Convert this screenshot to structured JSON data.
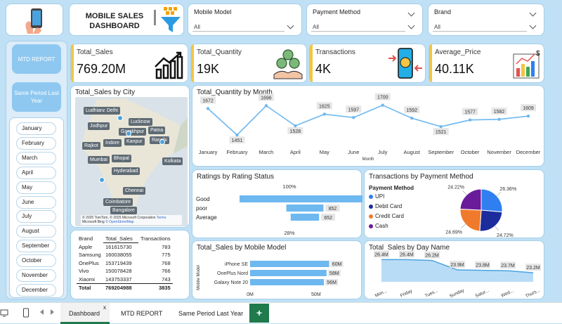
{
  "header": {
    "title_line1": "MOBILE SALES",
    "title_line2": "DASHBOARD"
  },
  "filters": [
    {
      "label": "Mobile Model",
      "value": "All"
    },
    {
      "label": "Payment Method",
      "value": "All"
    },
    {
      "label": "Brand",
      "value": "All"
    }
  ],
  "nav": {
    "mtd": "MTD REPORT",
    "same_period": "Same Period Last Year"
  },
  "kpis": [
    {
      "label": "Total_Sales",
      "value": "769.20M"
    },
    {
      "label": "Total_Quantity",
      "value": "19K"
    },
    {
      "label": "Transactions",
      "value": "4K"
    },
    {
      "label": "Average_Price",
      "value": "40.11K",
      "icon_symbol": "$"
    }
  ],
  "months": [
    "January",
    "February",
    "March",
    "April",
    "May",
    "June",
    "July",
    "August",
    "September",
    "October",
    "November",
    "December"
  ],
  "map": {
    "title": "Total_Sales by City",
    "cities": [
      "Ludhiana",
      "Delhi",
      "Lucknow",
      "Jodhpur",
      "Gorakhpur",
      "Patna",
      "Rajkot",
      "Indore",
      "Kanpur",
      "Ranchi",
      "Mumbai",
      "Bhopal",
      "Kolkata",
      "Hyderabad",
      "Chennai",
      "Coimbatore",
      "Bangalore"
    ],
    "footer": "© 2025 TomTom, © 2025 Microsoft Corporation",
    "terms": "Terms",
    "osm": "© OpenStreetMap",
    "bing": "Microsoft Bing"
  },
  "brand_table": {
    "headers": [
      "Brand",
      "Total_Sales",
      "Transactions"
    ],
    "rows": [
      [
        "Apple",
        "161615730",
        "783"
      ],
      [
        "Samsung",
        "160038055",
        "775"
      ],
      [
        "OnePlus",
        "153719439",
        "768"
      ],
      [
        "Vivo",
        "150078428",
        "766"
      ],
      [
        "Xiaomi",
        "143753337",
        "743"
      ]
    ],
    "total": [
      "Total",
      "769204988",
      "3835"
    ]
  },
  "qty_month": {
    "title": "Total_Quantity by Month",
    "xlabel": "Month",
    "labels": [
      "1672",
      "1451",
      "1696",
      "1528",
      "1625",
      "1597",
      "1700",
      "1592",
      "1521",
      "1577",
      "1582",
      "1609"
    ]
  },
  "ratings": {
    "title": "Ratings by Rating Status",
    "top_label": "100%",
    "bottom_label": "28%",
    "categories": [
      "Good",
      "poor",
      "Average"
    ],
    "value_labels": [
      "",
      "852",
      "652"
    ]
  },
  "payment": {
    "title": "Transactions by Payment Method",
    "legend_title": "Payment Method",
    "slices": [
      {
        "name": "UPI",
        "pct": "26.36%",
        "color": "#2f7ff0"
      },
      {
        "name": "Debit Card",
        "pct": "24.72%",
        "color": "#1c2c9c"
      },
      {
        "name": "Credit Card",
        "pct": "24.69%",
        "color": "#f07a2c"
      },
      {
        "name": "Cash",
        "pct": "24.22%",
        "color": "#6a1b9a"
      }
    ]
  },
  "model_sales": {
    "title": "Total_Sales by Mobile Model",
    "ylabel": "Mobile Model",
    "models": [
      "iPhone SE",
      "OnePlus Nord",
      "Galaxy Note 20"
    ],
    "labels": [
      "60M",
      "58M",
      "56M"
    ],
    "axis": [
      "0M",
      "50M"
    ]
  },
  "day_sales": {
    "title": "Total_Sales by Day Name",
    "days": [
      "Mon...",
      "Friday",
      "Tues...",
      "Sunday",
      "Satur...",
      "Wed...",
      "Thurs..."
    ],
    "labels": [
      "26.4M",
      "26.4M",
      "26.2M",
      "23.9M",
      "23.8M",
      "23.7M",
      "23.2M"
    ]
  },
  "tabs": [
    "Dashboard",
    "MTD REPORT",
    "Same Period Last Year"
  ],
  "tab_close": "x",
  "tab_add": "+",
  "chart_data": [
    {
      "type": "line",
      "title": "Total_Quantity by Month",
      "xlabel": "Month",
      "x": [
        "January",
        "February",
        "March",
        "April",
        "May",
        "June",
        "July",
        "August",
        "September",
        "October",
        "November",
        "December"
      ],
      "series": [
        {
          "values": [
            1672,
            1451,
            1696,
            1528,
            1625,
            1597,
            1700,
            1592,
            1521,
            1577,
            1582,
            1609
          ]
        }
      ]
    },
    {
      "type": "bar",
      "title": "Ratings by Rating Status",
      "categories": [
        "Good",
        "poor",
        "Average"
      ],
      "values": [
        3000,
        852,
        652
      ]
    },
    {
      "type": "pie",
      "title": "Transactions by Payment Method",
      "categories": [
        "UPI",
        "Debit Card",
        "Credit Card",
        "Cash"
      ],
      "values": [
        26.36,
        24.72,
        24.69,
        24.22
      ]
    },
    {
      "type": "bar",
      "title": "Total_Sales by Mobile Model",
      "categories": [
        "iPhone SE",
        "OnePlus Nord",
        "Galaxy Note 20"
      ],
      "values": [
        60,
        58,
        56
      ],
      "xlim": [
        0,
        65
      ]
    },
    {
      "type": "area",
      "title": "Total_Sales by Day Name",
      "categories": [
        "Mon...",
        "Friday",
        "Tues...",
        "Sunday",
        "Satur...",
        "Wed...",
        "Thurs..."
      ],
      "values": [
        26.4,
        26.4,
        26.2,
        23.9,
        23.8,
        23.7,
        23.2
      ]
    }
  ]
}
